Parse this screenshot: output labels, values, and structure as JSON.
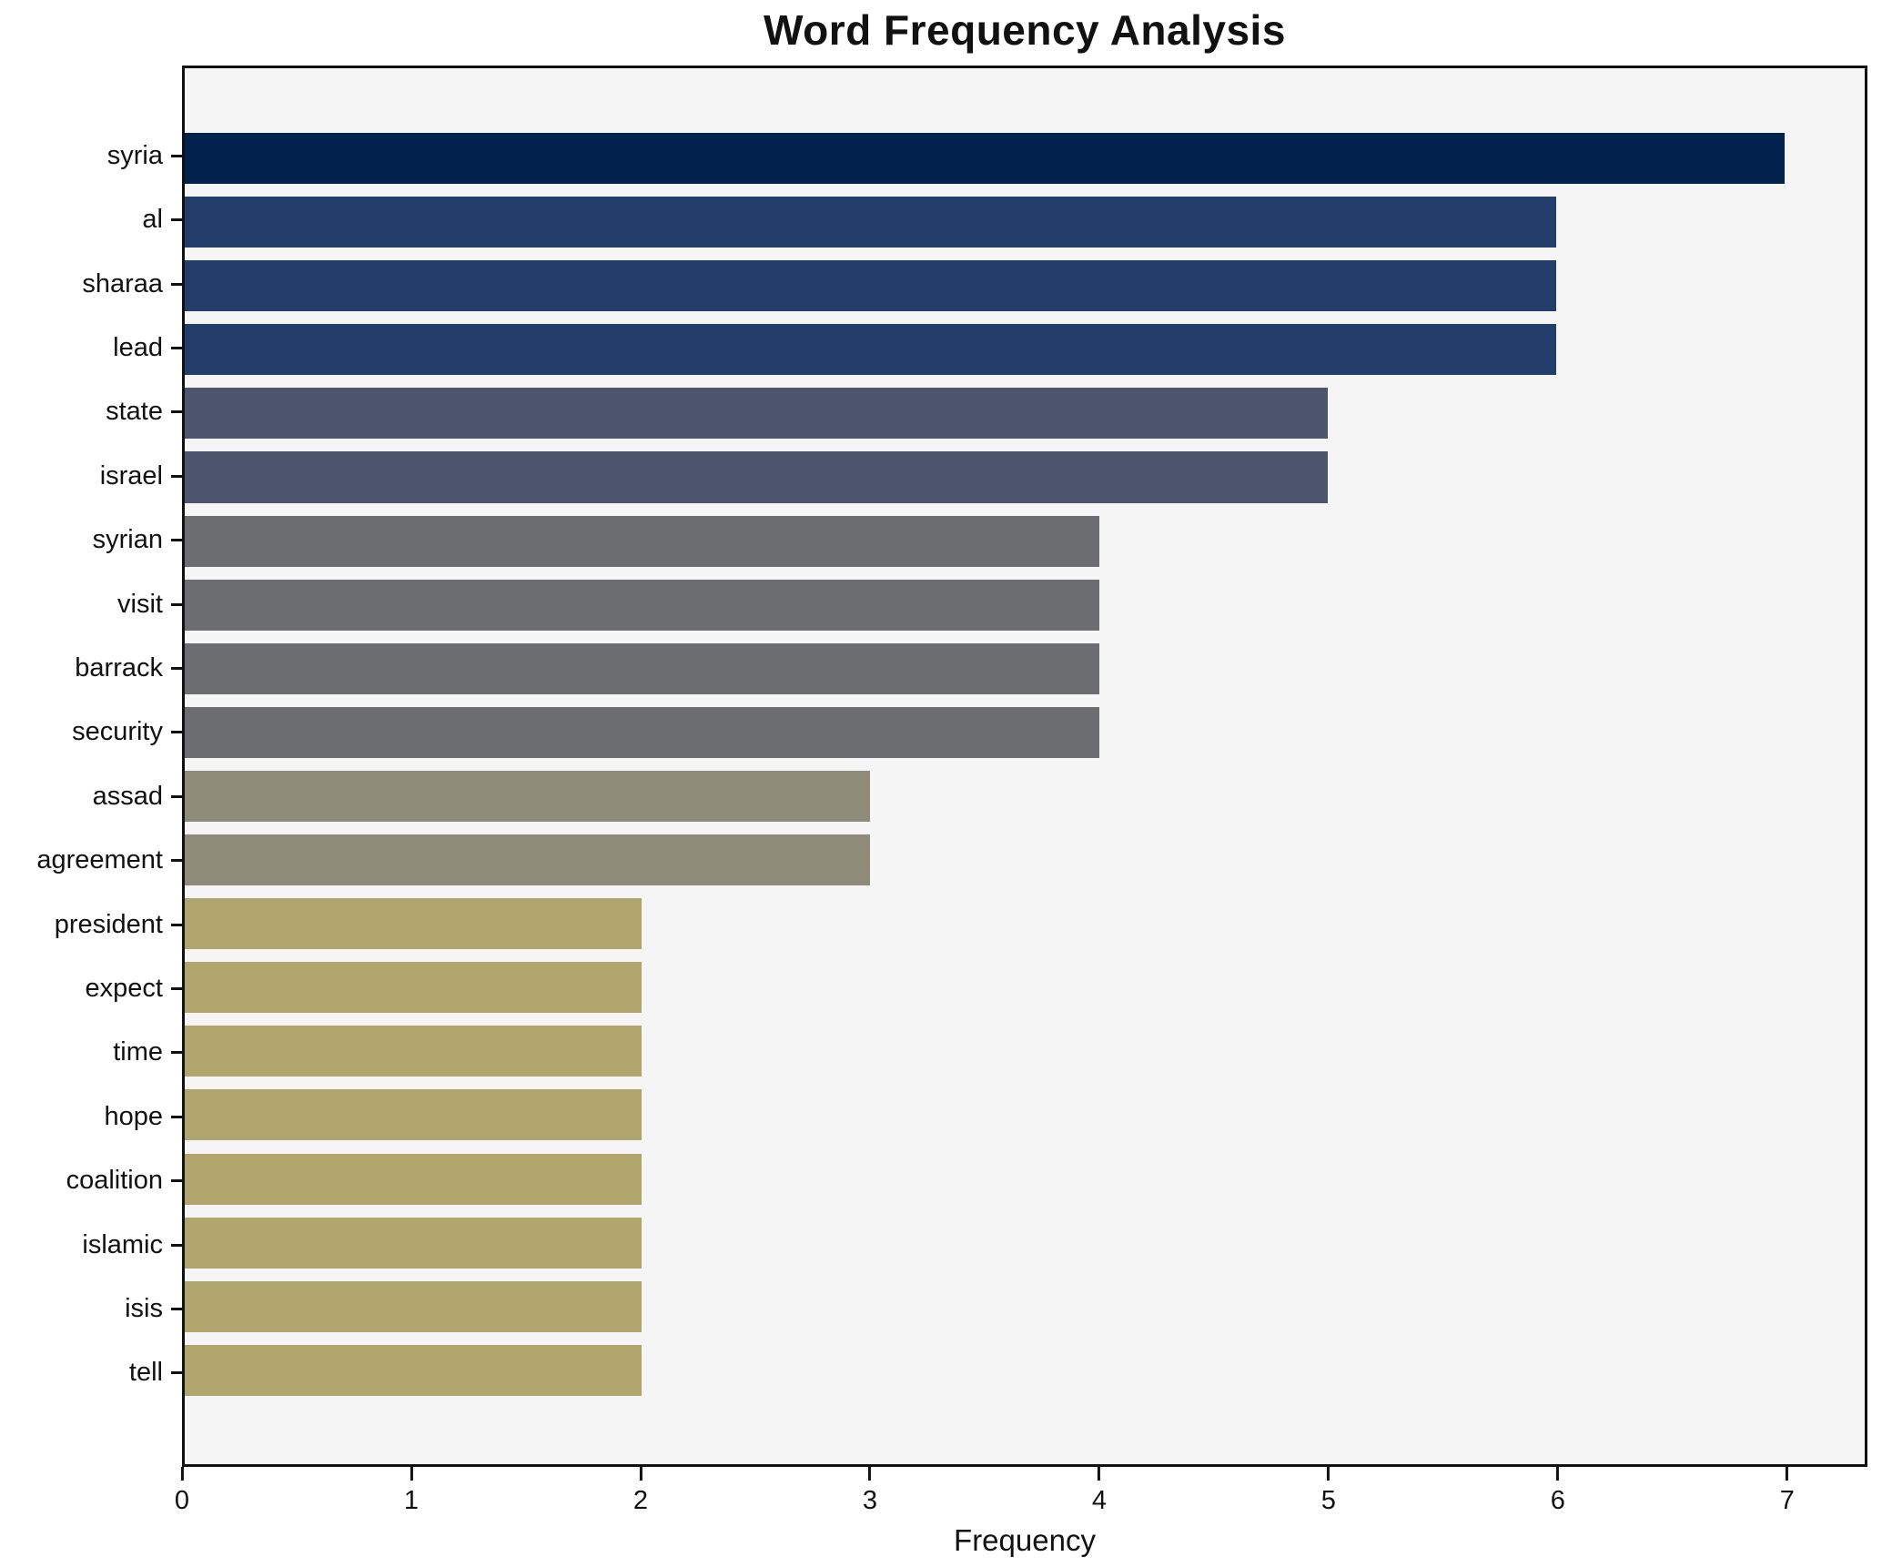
{
  "chart_data": {
    "type": "bar",
    "orientation": "horizontal",
    "title": "Word Frequency Analysis",
    "xlabel": "Frequency",
    "ylabel": "",
    "categories": [
      "syria",
      "al",
      "sharaa",
      "lead",
      "state",
      "israel",
      "syrian",
      "visit",
      "barrack",
      "security",
      "assad",
      "agreement",
      "president",
      "expect",
      "time",
      "hope",
      "coalition",
      "islamic",
      "isis",
      "tell"
    ],
    "values": [
      7,
      6,
      6,
      6,
      5,
      5,
      4,
      4,
      4,
      4,
      3,
      3,
      2,
      2,
      2,
      2,
      2,
      2,
      2,
      2
    ],
    "bar_colors": [
      "#01224d",
      "#243e6b",
      "#243e6b",
      "#243e6b",
      "#4c556c",
      "#4c556c",
      "#6c6d71",
      "#6c6d71",
      "#6c6d71",
      "#6c6d71",
      "#8f8b79",
      "#8f8b79",
      "#b0a56c",
      "#b0a56c",
      "#b0a56c",
      "#b0a56c",
      "#b0a56c",
      "#b0a56c",
      "#b0a56c",
      "#b0a56c"
    ],
    "x_ticks": [
      0,
      1,
      2,
      3,
      4,
      5,
      6,
      7
    ],
    "xlim": [
      0,
      7.35
    ],
    "grid": false,
    "legend": null,
    "plot_background": "#f5f5f6",
    "figure_background": "#ffffff",
    "spine_color": "#111111"
  }
}
